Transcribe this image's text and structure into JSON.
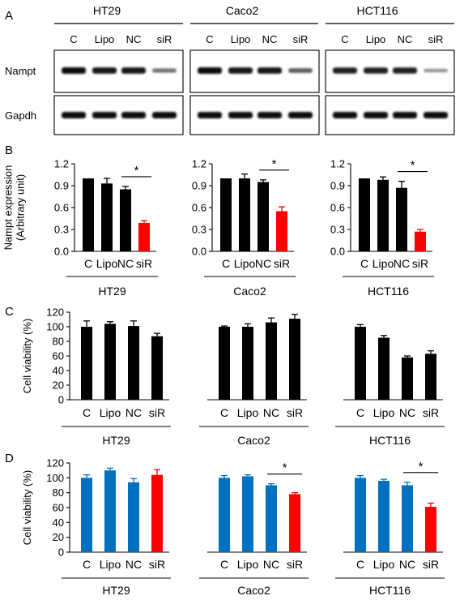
{
  "panel_letters": [
    "A",
    "B",
    "C",
    "D"
  ],
  "cell_lines": [
    "HT29",
    "Caco2",
    "HCT116"
  ],
  "lanes": [
    "C",
    "Lipo",
    "NC",
    "siR"
  ],
  "blot": {
    "rows": [
      "Nampt",
      "Gapdh"
    ],
    "nampt_band_intensity": [
      [
        1.0,
        0.95,
        0.95,
        0.45
      ],
      [
        1.0,
        0.95,
        0.95,
        0.55
      ],
      [
        0.9,
        0.9,
        0.9,
        0.25
      ]
    ],
    "gapdh_band_intensity": [
      [
        1.0,
        1.0,
        1.0,
        1.0
      ],
      [
        1.0,
        1.0,
        1.0,
        1.0
      ],
      [
        1.0,
        1.0,
        1.0,
        1.0
      ]
    ]
  },
  "colors": {
    "black": "#000000",
    "red": "#ff0000",
    "blue": "#0070c0"
  },
  "chart_data": [
    {
      "panel": "B",
      "type": "bar",
      "ylabel": "Nampt expression\n(Arbitrary unit)",
      "ylim": [
        0,
        1.2
      ],
      "yticks": [
        "0.0",
        "0.3",
        "0.6",
        "0.9",
        "1.2"
      ],
      "groups": [
        {
          "name": "HT29",
          "categories": [
            "C",
            "Lipo",
            "NC",
            "siR"
          ],
          "values": [
            1.0,
            0.93,
            0.85,
            0.39
          ],
          "errors": [
            0.0,
            0.07,
            0.04,
            0.03
          ],
          "colors": [
            "#000000",
            "#000000",
            "#000000",
            "#ff0000"
          ],
          "significance": {
            "from": 2,
            "to": 3,
            "label": "*"
          }
        },
        {
          "name": "Caco2",
          "categories": [
            "C",
            "Lipo",
            "NC",
            "siR"
          ],
          "values": [
            1.0,
            1.0,
            0.95,
            0.55
          ],
          "errors": [
            0.0,
            0.06,
            0.03,
            0.06
          ],
          "colors": [
            "#000000",
            "#000000",
            "#000000",
            "#ff0000"
          ],
          "significance": {
            "from": 2,
            "to": 3,
            "label": "*"
          }
        },
        {
          "name": "HCT116",
          "categories": [
            "C",
            "Lipo",
            "NC",
            "siR"
          ],
          "values": [
            1.0,
            0.98,
            0.87,
            0.27
          ],
          "errors": [
            0.0,
            0.04,
            0.09,
            0.03
          ],
          "colors": [
            "#000000",
            "#000000",
            "#000000",
            "#ff0000"
          ],
          "significance": {
            "from": 2,
            "to": 3,
            "label": "*"
          }
        }
      ]
    },
    {
      "panel": "C",
      "type": "bar",
      "ylabel": "Cell viability (%)",
      "ylim": [
        0,
        120
      ],
      "yticks": [
        "0",
        "20",
        "40",
        "60",
        "80",
        "100",
        "120"
      ],
      "groups": [
        {
          "name": "HT29",
          "categories": [
            "C",
            "Lipo",
            "NC",
            "siR"
          ],
          "values": [
            100,
            104,
            101,
            87
          ],
          "errors": [
            8,
            3,
            7,
            4
          ],
          "colors": [
            "#000000",
            "#000000",
            "#000000",
            "#000000"
          ],
          "significance": null
        },
        {
          "name": "Caco2",
          "categories": [
            "C",
            "Lipo",
            "NC",
            "siR"
          ],
          "values": [
            100,
            100,
            106,
            111
          ],
          "errors": [
            1,
            4,
            6,
            6
          ],
          "colors": [
            "#000000",
            "#000000",
            "#000000",
            "#000000"
          ],
          "significance": null
        },
        {
          "name": "HCT116",
          "categories": [
            "C",
            "Lipo",
            "NC",
            "siR"
          ],
          "values": [
            100,
            85,
            58,
            63
          ],
          "errors": [
            3,
            3,
            2,
            4
          ],
          "colors": [
            "#000000",
            "#000000",
            "#000000",
            "#000000"
          ],
          "significance": null
        }
      ]
    },
    {
      "panel": "D",
      "type": "bar",
      "ylabel": "Cell viability (%)",
      "ylim": [
        0,
        120
      ],
      "yticks": [
        "0",
        "20",
        "40",
        "60",
        "80",
        "100",
        "120"
      ],
      "groups": [
        {
          "name": "HT29",
          "categories": [
            "C",
            "Lipo",
            "NC",
            "siR"
          ],
          "values": [
            100,
            110,
            94,
            104
          ],
          "errors": [
            4,
            3,
            5,
            7
          ],
          "colors": [
            "#0070c0",
            "#0070c0",
            "#0070c0",
            "#ff0000"
          ],
          "significance": null
        },
        {
          "name": "Caco2",
          "categories": [
            "C",
            "Lipo",
            "NC",
            "siR"
          ],
          "values": [
            100,
            102,
            90,
            78
          ],
          "errors": [
            3,
            2,
            2,
            2
          ],
          "colors": [
            "#0070c0",
            "#0070c0",
            "#0070c0",
            "#ff0000"
          ],
          "significance": {
            "from": 2,
            "to": 3,
            "label": "*"
          }
        },
        {
          "name": "HCT116",
          "categories": [
            "C",
            "Lipo",
            "NC",
            "siR"
          ],
          "values": [
            100,
            96,
            90,
            61
          ],
          "errors": [
            3,
            2,
            4,
            5
          ],
          "colors": [
            "#0070c0",
            "#0070c0",
            "#0070c0",
            "#ff0000"
          ],
          "significance": {
            "from": 2,
            "to": 3,
            "label": "*"
          }
        }
      ]
    }
  ]
}
